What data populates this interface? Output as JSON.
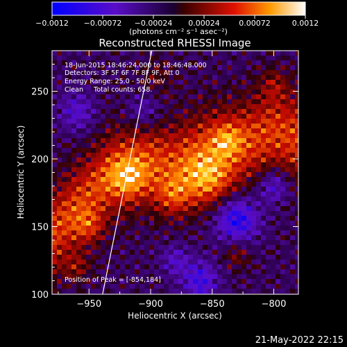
{
  "chart_data": {
    "type": "heatmap",
    "title": "Reconstructed RHESSI Image",
    "xlabel": "Heliocentric X (arcsec)",
    "ylabel": "Heliocentric Y (arcsec)",
    "xlim": [
      -980,
      -780
    ],
    "ylim": [
      100,
      280
    ],
    "xticks": [
      -950,
      -900,
      -850,
      -800
    ],
    "xtick_labels": [
      "−950",
      "−900",
      "−850",
      "−800"
    ],
    "yticks": [
      100,
      150,
      200,
      250
    ],
    "ytick_labels": [
      "100",
      "150",
      "200",
      "250"
    ],
    "colorbar": {
      "min": -0.0012,
      "max": 0.0012,
      "ticks": [
        -0.0012,
        -0.00072,
        -0.00024,
        0.00024,
        0.00072,
        0.0012
      ],
      "tick_labels": [
        "−0.0012",
        "−0.00072",
        "−0.00024",
        "0.00024",
        "0.00072",
        "0.0012"
      ],
      "unit": "(photons cm⁻² s⁻¹ asec⁻²)"
    },
    "annotations": [
      "18-Jun-2015 18:46:24.000 to 18:46:48.000",
      "Detectors: 3F 5F 6F 7F 8F 9F, Att 0",
      "Energy Range: 25.0 - 50.0 keV",
      "Clean     Total counts: 658.",
      "Position of Peak = [-854,184]"
    ],
    "peak": {
      "x": -854,
      "y": 184
    },
    "limb_line": {
      "x": [
        -939,
        -899
      ],
      "y": [
        100,
        280
      ]
    },
    "emission_region": {
      "description_x": [
        -960,
        -880,
        -840,
        -810
      ],
      "description_y": [
        160,
        195,
        205,
        215
      ]
    }
  },
  "footer": {
    "date": "21-May-2022 22:15"
  },
  "colors": {
    "background": "#000000",
    "text": "#ffffff"
  }
}
